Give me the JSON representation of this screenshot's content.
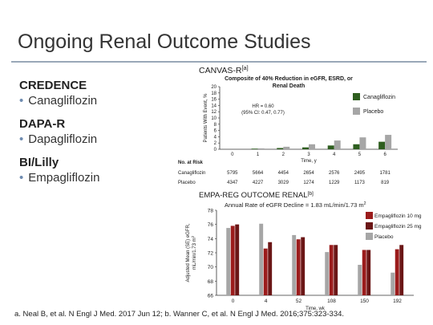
{
  "slide": {
    "title": "Ongoing Renal Outcome Studies",
    "trials": [
      {
        "name": "CREDENCE",
        "drug": "Canagliflozin"
      },
      {
        "name": "DAPA-R",
        "drug": "Dapagliflozin"
      },
      {
        "name": "BI/Lilly",
        "drug": "Empagliflozin"
      }
    ],
    "footnote": "a. Neal B, et al. N Engl J Med. 2017 Jun 12; b. Wanner C, et al. N Engl J Med. 2016;375:323-334."
  },
  "colors": {
    "canvas_canagliflozin": "#2e5e1f",
    "canvas_placebo": "#a6a6a6",
    "empa_10mg": "#9b1c1c",
    "empa_25mg": "#6b1616",
    "empa_placebo": "#a6a6a6"
  },
  "chart_data": [
    {
      "type": "bar",
      "panel_label": "CANVAS-R",
      "panel_label_sup": "[a]",
      "title_lines": [
        "Composite of 40% Reduction in eGFR, ESRD, or",
        "Renal Death"
      ],
      "ylabel": "Patients With Event, %",
      "xlabel": "Time, y",
      "ylim": [
        0,
        20
      ],
      "yticks": [
        0,
        2,
        4,
        6,
        8,
        10,
        12,
        14,
        16,
        18,
        20
      ],
      "categories": [
        "0",
        "1",
        "2",
        "3",
        "4",
        "5",
        "6"
      ],
      "series": [
        {
          "name": "Canagliflozin",
          "values": [
            0,
            0.2,
            0.4,
            0.6,
            1.2,
            1.6,
            2.4
          ]
        },
        {
          "name": "Placebo",
          "values": [
            0,
            0.3,
            0.8,
            1.6,
            2.8,
            3.8,
            4.6
          ]
        }
      ],
      "annotation_lines": [
        "HR = 0.60",
        "(95% CI: 0.47, 0.77)"
      ],
      "risk_table": {
        "header": "No. at Risk",
        "rows": [
          {
            "label": "Canagliflozin",
            "values": [
              "5795",
              "5664",
              "4454",
              "2654",
              "2576",
              "2495",
              "1781"
            ]
          },
          {
            "label": "Placebo",
            "values": [
              "4347",
              "4227",
              "3029",
              "1274",
              "1229",
              "1173",
              "819"
            ]
          }
        ]
      },
      "legend_position": "right"
    },
    {
      "type": "bar",
      "panel_label": "EMPA-REG OUTCOME RENAL",
      "panel_label_sup": "[b]",
      "title": "Annual Rate of eGFR Decline = 1.83 mL/min/1.73 m",
      "title_sup": "2",
      "ylabel_lines": [
        "Adjusted Mean (SE) eGFR,",
        "mL/min/1.73 m"
      ],
      "ylabel_sup": "2",
      "xlabel": "Time, wk",
      "ylim": [
        66,
        78
      ],
      "yticks": [
        66,
        68,
        70,
        72,
        74,
        76,
        78
      ],
      "categories": [
        "0",
        "4",
        "52",
        "108",
        "150",
        "192"
      ],
      "series": [
        {
          "name": "Placebo",
          "values": [
            75.5,
            76.1,
            74.5,
            72.1,
            70.3,
            69.2
          ]
        },
        {
          "name": "Empagliflozin 10 mg",
          "values": [
            75.8,
            72.6,
            73.9,
            73.1,
            72.4,
            72.5
          ]
        },
        {
          "name": "Empagliflozin 25 mg",
          "values": [
            76.0,
            73.5,
            74.2,
            73.1,
            72.4,
            73.1
          ]
        }
      ],
      "legend_position": "right"
    }
  ]
}
